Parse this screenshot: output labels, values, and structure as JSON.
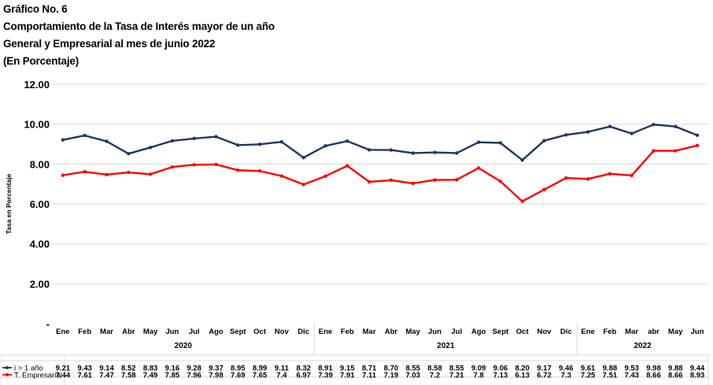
{
  "header": {
    "line1": "Gráfico No.  6",
    "line2": "Comportamiento de la Tasa de Interés mayor de un año",
    "line3": "General y Empresarial al mes de junio 2022",
    "line4": "(En Porcentaje)"
  },
  "chart_data": {
    "type": "line",
    "ylabel": "Tasa en Porcentaje",
    "ylim": [
      0,
      12
    ],
    "yticks": [
      "-",
      "2.00",
      "4.00",
      "6.00",
      "8.00",
      "10.00",
      "12.00"
    ],
    "grid": true,
    "legend_placement": "data table rows below chart",
    "categories": [
      "Ene",
      "Feb",
      "Mar",
      "Abr",
      "May",
      "Jun",
      "Jul",
      "Ago",
      "Sept",
      "Oct",
      "Nov",
      "Dic",
      "Ene",
      "Feb",
      "Mar",
      "Abr",
      "May",
      "Jun",
      "Jul",
      "Ago",
      "Sept",
      "Oct",
      "Nov",
      "Dic",
      "Ene",
      "Feb",
      "Mar",
      "abr",
      "May",
      "Jun"
    ],
    "year_groups": [
      {
        "label": "2020",
        "start": 0,
        "count": 12
      },
      {
        "label": "2021",
        "start": 12,
        "count": 12
      },
      {
        "label": "2022",
        "start": 24,
        "count": 6
      }
    ],
    "series": [
      {
        "name": "i > 1 año",
        "color": "#1f3864",
        "values": [
          9.21,
          9.43,
          9.14,
          8.52,
          8.83,
          9.16,
          9.28,
          9.37,
          8.95,
          8.99,
          9.11,
          8.32,
          8.91,
          9.15,
          8.71,
          8.7,
          8.55,
          8.58,
          8.55,
          9.09,
          9.06,
          8.2,
          9.17,
          9.46,
          9.61,
          9.88,
          9.53,
          9.98,
          9.88,
          9.44
        ],
        "labels": [
          "9.21",
          "9.43",
          "9.14",
          "8.52",
          "8.83",
          "9.16",
          "9.28",
          "9.37",
          "8.95",
          "8.99",
          "9.11",
          "8.32",
          "8.91",
          "9.15",
          "8.71",
          "8.70",
          "8.55",
          "8.58",
          "8.55",
          "9.09",
          "9.06",
          "8.20",
          "9.17",
          "9.46",
          "9.61",
          "9.88",
          "9.53",
          "9.98",
          "9.88",
          "9.44"
        ]
      },
      {
        "name": "T. Empresarial",
        "color": "#ff0000",
        "values": [
          7.44,
          7.61,
          7.47,
          7.58,
          7.49,
          7.85,
          7.96,
          7.98,
          7.69,
          7.65,
          7.4,
          6.97,
          7.39,
          7.91,
          7.11,
          7.19,
          7.03,
          7.2,
          7.21,
          7.8,
          7.13,
          6.13,
          6.72,
          7.3,
          7.25,
          7.51,
          7.43,
          8.66,
          8.66,
          8.93
        ],
        "labels": [
          "7.44",
          "7.61",
          "7.47",
          "7.58",
          "7.49",
          "7.85",
          "7.96",
          "7.98",
          "7.69",
          "7.65",
          "7.4",
          "6.97",
          "7.39",
          "7.91",
          "7.11",
          "7.19",
          "7.03",
          "7.2",
          "7.21",
          "7.8",
          "7.13",
          "6.13",
          "6.72",
          "7.3",
          "7.25",
          "7.51",
          "7.43",
          "8.66",
          "8.66",
          "8.93"
        ]
      }
    ]
  }
}
